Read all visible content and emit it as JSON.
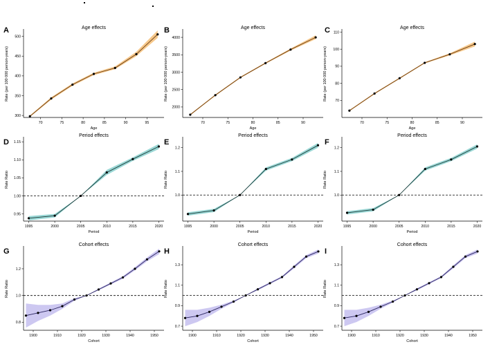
{
  "figure": {
    "colors": {
      "age_band": "#f5c27e",
      "age_line": "#6b3d12",
      "period_band": "#8fd3d0",
      "period_line": "#1a3a38",
      "cohort_band": "#c8c2ef",
      "cohort_line": "#2a2460",
      "point": "#000000",
      "reference": "#000000"
    }
  },
  "chart_data": [
    {
      "panel": "A",
      "type": "line",
      "title": "Age effects",
      "xlabel": "Age",
      "ylabel": "Rate (per 100 000 person-years)",
      "xlim": [
        66,
        99
      ],
      "ylim": [
        295,
        515
      ],
      "xticks": [
        70,
        75,
        80,
        85,
        90,
        95
      ],
      "yticks": [
        300,
        350,
        400,
        450,
        500
      ],
      "x": [
        67.5,
        72.5,
        77.5,
        82.5,
        87.5,
        92.5,
        97.5
      ],
      "y": [
        298,
        343,
        378,
        405,
        420,
        455,
        505
      ],
      "lower": [
        296,
        340,
        375,
        402,
        417,
        450,
        496
      ],
      "upper": [
        300,
        346,
        381,
        408,
        424,
        461,
        515
      ],
      "reference": null
    },
    {
      "panel": "B",
      "type": "line",
      "title": "Age effects",
      "xlabel": "Age",
      "ylabel": "Rate (per 100 000 person-years)",
      "xlim": [
        66,
        94
      ],
      "ylim": [
        1700,
        4200
      ],
      "xticks": [
        70,
        75,
        80,
        85,
        90
      ],
      "yticks": [
        2000,
        2500,
        3000,
        3500,
        4000
      ],
      "x": [
        67.5,
        72.5,
        77.5,
        82.5,
        87.5,
        92.5
      ],
      "y": [
        1780,
        2340,
        2850,
        3260,
        3650,
        4000
      ],
      "lower": [
        1760,
        2320,
        2830,
        3240,
        3620,
        3950
      ],
      "upper": [
        1800,
        2360,
        2870,
        3280,
        3680,
        4060
      ],
      "reference": null
    },
    {
      "panel": "C",
      "type": "line",
      "title": "Age effects",
      "xlabel": "Age",
      "ylabel": "Rate (per 100 000 person-years)",
      "xlim": [
        66,
        94
      ],
      "ylim": [
        60,
        111
      ],
      "xticks": [
        70,
        75,
        80,
        85,
        90
      ],
      "yticks": [
        70,
        80,
        90,
        100,
        110
      ],
      "x": [
        67.5,
        72.5,
        77.5,
        82.5,
        87.5,
        92.5
      ],
      "y": [
        64,
        74,
        83,
        92,
        97,
        103
      ],
      "lower": [
        63.6,
        73.6,
        82.6,
        91.6,
        96.4,
        101.6
      ],
      "upper": [
        64.4,
        74.4,
        83.4,
        92.4,
        97.6,
        104.4
      ],
      "reference": null
    },
    {
      "panel": "D",
      "type": "line",
      "title": "Period effects",
      "xlabel": "Period",
      "ylabel": "Rate Ratio",
      "xlim": [
        1994,
        2021
      ],
      "ylim": [
        0.93,
        1.16
      ],
      "xticks": [
        1995,
        2000,
        2005,
        2010,
        2015,
        2020
      ],
      "yticks": [
        0.95,
        1.0,
        1.05,
        1.1,
        1.15
      ],
      "ytick_labels": [
        "0.95",
        "1.00",
        "1.05",
        "1.10",
        "1.15"
      ],
      "x": [
        1995,
        2000,
        2005,
        2010,
        2015,
        2020
      ],
      "y": [
        0.938,
        0.945,
        1.0,
        1.065,
        1.102,
        1.137
      ],
      "lower": [
        0.932,
        0.94,
        1.0,
        1.058,
        1.097,
        1.13
      ],
      "upper": [
        0.944,
        0.95,
        1.0,
        1.072,
        1.107,
        1.144
      ],
      "reference": 1.0
    },
    {
      "panel": "E",
      "type": "line",
      "title": "Period effects",
      "xlabel": "Period",
      "ylabel": "Rate Ratio",
      "xlim": [
        1994,
        2021
      ],
      "ylim": [
        0.89,
        1.24
      ],
      "xticks": [
        1995,
        2000,
        2005,
        2010,
        2015,
        2020
      ],
      "yticks": [
        1.0,
        1.1,
        1.2
      ],
      "ytick_labels": [
        "1.0",
        "1.1",
        "1.2"
      ],
      "x": [
        1995,
        2000,
        2005,
        2010,
        2015,
        2020
      ],
      "y": [
        0.92,
        0.935,
        1.0,
        1.11,
        1.15,
        1.21
      ],
      "lower": [
        0.913,
        0.928,
        1.0,
        1.103,
        1.143,
        1.2
      ],
      "upper": [
        0.927,
        0.942,
        1.0,
        1.117,
        1.157,
        1.22
      ],
      "reference": 1.0
    },
    {
      "panel": "F",
      "type": "line",
      "title": "Period effects",
      "xlabel": "Period",
      "ylabel": "Rate Ratio",
      "xlim": [
        1994,
        2021
      ],
      "ylim": [
        0.89,
        1.24
      ],
      "xticks": [
        1995,
        2000,
        2005,
        2010,
        2015,
        2020
      ],
      "yticks": [
        1.0,
        1.1,
        1.2
      ],
      "ytick_labels": [
        "1.0",
        "1.1",
        "1.2"
      ],
      "x": [
        1995,
        2000,
        2005,
        2010,
        2015,
        2020
      ],
      "y": [
        0.925,
        0.938,
        1.0,
        1.11,
        1.15,
        1.205
      ],
      "lower": [
        0.918,
        0.931,
        1.0,
        1.103,
        1.143,
        1.196
      ],
      "upper": [
        0.932,
        0.945,
        1.0,
        1.117,
        1.157,
        1.214
      ],
      "reference": 1.0
    },
    {
      "panel": "G",
      "type": "line",
      "title": "Cohort effects",
      "xlabel": "Cohort",
      "ylabel": "Rate Ratio",
      "xlim": [
        1896,
        1954
      ],
      "ylim": [
        0.74,
        1.36
      ],
      "xticks": [
        1900,
        1910,
        1920,
        1930,
        1940,
        1950
      ],
      "yticks": [
        0.8,
        1.0,
        1.2
      ],
      "ytick_labels": [
        "0.8",
        "1.0",
        "1.2"
      ],
      "x": [
        1897,
        1902,
        1907,
        1912,
        1917,
        1922,
        1927,
        1932,
        1937,
        1942,
        1947,
        1952
      ],
      "y": [
        0.85,
        0.87,
        0.89,
        0.92,
        0.97,
        1.0,
        1.045,
        1.09,
        1.135,
        1.2,
        1.27,
        1.33
      ],
      "lower": [
        0.76,
        0.81,
        0.85,
        0.9,
        0.96,
        1.0,
        1.038,
        1.082,
        1.125,
        1.188,
        1.255,
        1.31
      ],
      "upper": [
        0.94,
        0.93,
        0.93,
        0.94,
        0.98,
        1.0,
        1.052,
        1.098,
        1.145,
        1.212,
        1.285,
        1.35
      ],
      "reference": 1.0
    },
    {
      "panel": "H",
      "type": "line",
      "title": "Cohort effects",
      "xlabel": "Cohort",
      "ylabel": "Rate Ratio",
      "xlim": [
        1896,
        1954
      ],
      "ylim": [
        0.66,
        1.47
      ],
      "xticks": [
        1900,
        1910,
        1920,
        1930,
        1940,
        1950
      ],
      "yticks": [
        0.7,
        0.9,
        1.1,
        1.3
      ],
      "ytick_labels": [
        "0.7",
        "0.9",
        "1.1",
        "1.3"
      ],
      "x": [
        1897,
        1902,
        1907,
        1912,
        1917,
        1922,
        1927,
        1932,
        1937,
        1942,
        1947,
        1952
      ],
      "y": [
        0.78,
        0.8,
        0.84,
        0.89,
        0.94,
        1.0,
        1.06,
        1.12,
        1.18,
        1.28,
        1.38,
        1.43
      ],
      "lower": [
        0.7,
        0.74,
        0.8,
        0.87,
        0.93,
        1.0,
        1.05,
        1.11,
        1.17,
        1.265,
        1.365,
        1.41
      ],
      "upper": [
        0.86,
        0.86,
        0.88,
        0.91,
        0.95,
        1.0,
        1.07,
        1.13,
        1.19,
        1.295,
        1.395,
        1.45
      ],
      "reference": 1.0
    },
    {
      "panel": "I",
      "type": "line",
      "title": "Cohort effects",
      "xlabel": "Cohort",
      "ylabel": "Rate Ratio",
      "xlim": [
        1896,
        1954
      ],
      "ylim": [
        0.66,
        1.47
      ],
      "xticks": [
        1900,
        1910,
        1920,
        1930,
        1940,
        1950
      ],
      "yticks": [
        0.7,
        0.9,
        1.1,
        1.3
      ],
      "ytick_labels": [
        "0.7",
        "0.9",
        "1.1",
        "1.3"
      ],
      "x": [
        1897,
        1902,
        1907,
        1912,
        1917,
        1922,
        1927,
        1932,
        1937,
        1942,
        1947,
        1952
      ],
      "y": [
        0.78,
        0.8,
        0.84,
        0.89,
        0.94,
        1.0,
        1.06,
        1.12,
        1.18,
        1.28,
        1.38,
        1.43
      ],
      "lower": [
        0.7,
        0.74,
        0.8,
        0.87,
        0.93,
        1.0,
        1.05,
        1.11,
        1.17,
        1.265,
        1.365,
        1.41
      ],
      "upper": [
        0.86,
        0.86,
        0.88,
        0.91,
        0.95,
        1.0,
        1.07,
        1.13,
        1.19,
        1.295,
        1.395,
        1.45
      ],
      "reference": 1.0
    }
  ]
}
